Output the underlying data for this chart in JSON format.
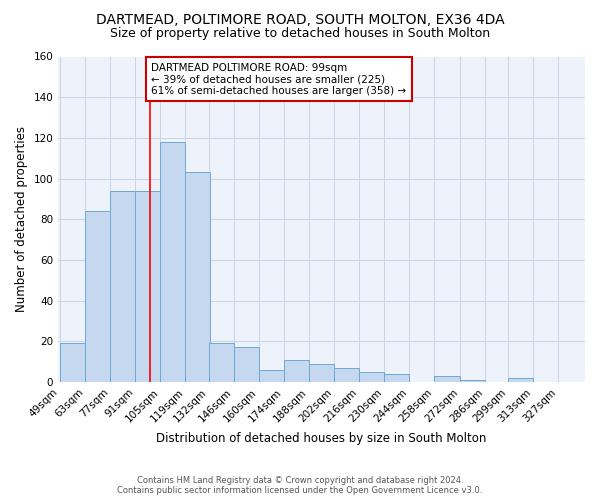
{
  "title": "DARTMEAD, POLTIMORE ROAD, SOUTH MOLTON, EX36 4DA",
  "subtitle": "Size of property relative to detached houses in South Molton",
  "xlabel": "Distribution of detached houses by size in South Molton",
  "ylabel": "Number of detached properties",
  "bar_labels": [
    "49sqm",
    "63sqm",
    "77sqm",
    "91sqm",
    "105sqm",
    "119sqm",
    "132sqm",
    "146sqm",
    "160sqm",
    "174sqm",
    "188sqm",
    "202sqm",
    "216sqm",
    "230sqm",
    "244sqm",
    "258sqm",
    "272sqm",
    "286sqm",
    "299sqm",
    "313sqm",
    "327sqm"
  ],
  "bar_values": [
    19,
    84,
    94,
    94,
    118,
    103,
    19,
    17,
    6,
    11,
    9,
    7,
    5,
    4,
    0,
    3,
    1,
    0,
    2,
    0,
    0
  ],
  "bar_color": "#c5d8f0",
  "bar_edge_color": "#6aaad4",
  "ylim": [
    0,
    160
  ],
  "yticks": [
    0,
    20,
    40,
    60,
    80,
    100,
    120,
    140,
    160
  ],
  "property_line_x_label": "105sqm",
  "property_line_label": "DARTMEAD POLTIMORE ROAD: 99sqm",
  "annotation_line1": "← 39% of detached houses are smaller (225)",
  "annotation_line2": "61% of semi-detached houses are larger (358) →",
  "annotation_box_color": "#ffffff",
  "annotation_border_color": "#cc0000",
  "footer_line1": "Contains HM Land Registry data © Crown copyright and database right 2024.",
  "footer_line2": "Contains public sector information licensed under the Open Government Licence v3.0.",
  "bg_color": "#eef2fa",
  "grid_color": "#c8d4e8",
  "title_fontsize": 10,
  "subtitle_fontsize": 9,
  "axis_label_fontsize": 8.5,
  "tick_fontsize": 7.5,
  "bin_width": 14
}
